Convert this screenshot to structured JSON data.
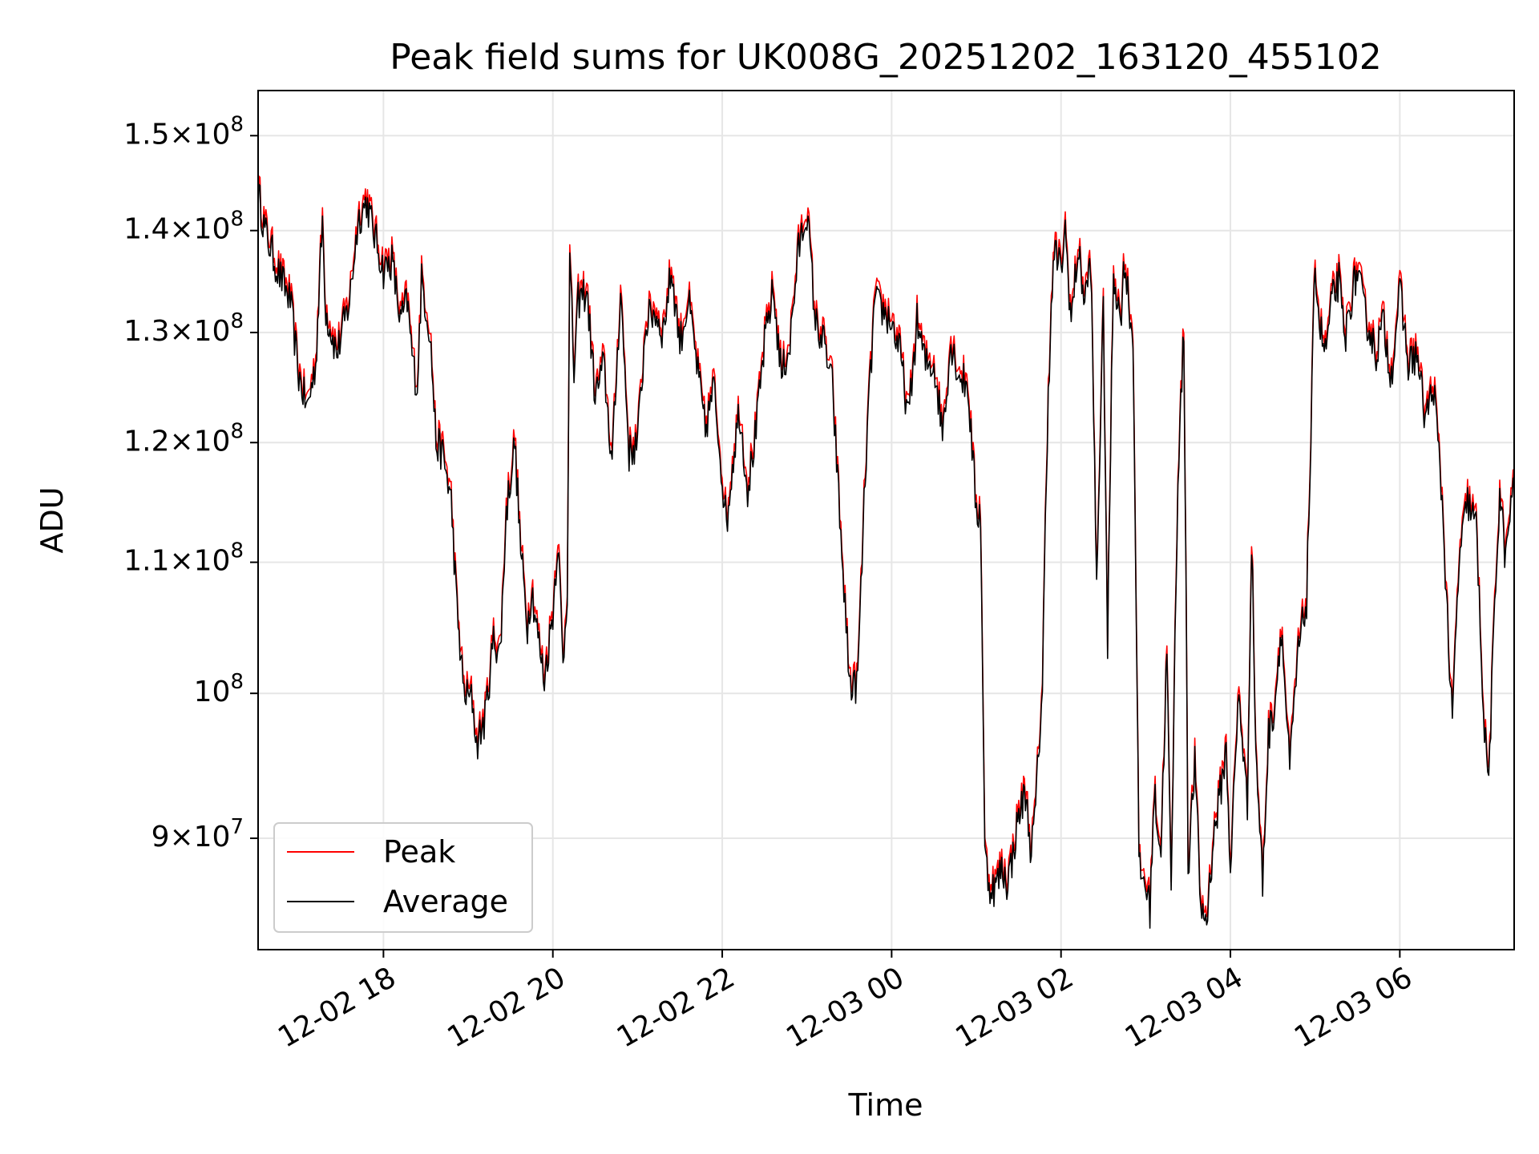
{
  "chart_data": {
    "type": "line",
    "title": "Peak field sums for UK008G_20251202_163120_455102",
    "xlabel": "Time",
    "ylabel": "ADU",
    "yscale": "log",
    "ylim": [
      83000000,
      155000000
    ],
    "xlim_hours": [
      16.52,
      31.35
    ],
    "grid": true,
    "legend_position": "lower left",
    "x_ticks": [
      {
        "hour": 18,
        "label": "12-02 18"
      },
      {
        "hour": 20,
        "label": "12-02 20"
      },
      {
        "hour": 22,
        "label": "12-02 22"
      },
      {
        "hour": 24,
        "label": "12-03 00"
      },
      {
        "hour": 26,
        "label": "12-03 02"
      },
      {
        "hour": 28,
        "label": "12-03 04"
      },
      {
        "hour": 30,
        "label": "12-03 06"
      }
    ],
    "y_ticks": [
      {
        "value": 90000000,
        "mant": "9",
        "exp": "7"
      },
      {
        "value": 100000000,
        "mant": "",
        "exp": "8"
      },
      {
        "value": 110000000,
        "mant": "1.1",
        "exp": "8"
      },
      {
        "value": 120000000,
        "mant": "1.2",
        "exp": "8"
      },
      {
        "value": 130000000,
        "mant": "1.3",
        "exp": "8"
      },
      {
        "value": 140000000,
        "mant": "1.4",
        "exp": "8"
      },
      {
        "value": 150000000,
        "mant": "1.5",
        "exp": "8"
      }
    ],
    "series": [
      {
        "name": "Peak",
        "color": "#ff0000",
        "offset_ratio": 1.006
      },
      {
        "name": "Average",
        "color": "#000000",
        "offset_ratio": 1.0
      }
    ],
    "average_points": [
      [
        16.52,
        144
      ],
      [
        16.6,
        140
      ],
      [
        16.75,
        136
      ],
      [
        16.9,
        133
      ],
      [
        17.0,
        126
      ],
      [
        17.1,
        123
      ],
      [
        17.2,
        127
      ],
      [
        17.28,
        141
      ],
      [
        17.32,
        132
      ],
      [
        17.45,
        128
      ],
      [
        17.6,
        133
      ],
      [
        17.7,
        141
      ],
      [
        17.8,
        143
      ],
      [
        17.88,
        140
      ],
      [
        18.0,
        136
      ],
      [
        18.1,
        137
      ],
      [
        18.2,
        131
      ],
      [
        18.28,
        133
      ],
      [
        18.35,
        127
      ],
      [
        18.4,
        125
      ],
      [
        18.45,
        135
      ],
      [
        18.55,
        130
      ],
      [
        18.62,
        120
      ],
      [
        18.7,
        119
      ],
      [
        18.8,
        115
      ],
      [
        18.87,
        106
      ],
      [
        18.95,
        100
      ],
      [
        19.05,
        99.5
      ],
      [
        19.1,
        96.3
      ],
      [
        19.2,
        98.2
      ],
      [
        19.3,
        104
      ],
      [
        19.38,
        103
      ],
      [
        19.45,
        114
      ],
      [
        19.55,
        120
      ],
      [
        19.62,
        111
      ],
      [
        19.7,
        105
      ],
      [
        19.75,
        108
      ],
      [
        19.85,
        103
      ],
      [
        19.9,
        101
      ],
      [
        20.0,
        106
      ],
      [
        20.06,
        112
      ],
      [
        20.12,
        102
      ],
      [
        20.17,
        108
      ],
      [
        20.2,
        137
      ],
      [
        20.25,
        126
      ],
      [
        20.3,
        133
      ],
      [
        20.4,
        134
      ],
      [
        20.5,
        124
      ],
      [
        20.6,
        127
      ],
      [
        20.7,
        118
      ],
      [
        20.8,
        134
      ],
      [
        20.9,
        119
      ],
      [
        21.0,
        120
      ],
      [
        21.1,
        131
      ],
      [
        21.2,
        132
      ],
      [
        21.3,
        130
      ],
      [
        21.4,
        136
      ],
      [
        21.5,
        129
      ],
      [
        21.6,
        133
      ],
      [
        21.7,
        127
      ],
      [
        21.8,
        121
      ],
      [
        21.9,
        125
      ],
      [
        22.0,
        117
      ],
      [
        22.05,
        113
      ],
      [
        22.12,
        118
      ],
      [
        22.2,
        123
      ],
      [
        22.3,
        116
      ],
      [
        22.4,
        121
      ],
      [
        22.5,
        129
      ],
      [
        22.6,
        134
      ],
      [
        22.7,
        126
      ],
      [
        22.8,
        129
      ],
      [
        22.9,
        138
      ],
      [
        23.0,
        142
      ],
      [
        23.1,
        131
      ],
      [
        23.2,
        129
      ],
      [
        23.3,
        125
      ],
      [
        23.4,
        112
      ],
      [
        23.5,
        101
      ],
      [
        23.55,
        100.3
      ],
      [
        23.6,
        101
      ],
      [
        23.7,
        119
      ],
      [
        23.8,
        133
      ],
      [
        23.9,
        132
      ],
      [
        24.0,
        131
      ],
      [
        24.1,
        128
      ],
      [
        24.2,
        122
      ],
      [
        24.3,
        131
      ],
      [
        24.4,
        127
      ],
      [
        24.5,
        127
      ],
      [
        24.6,
        121
      ],
      [
        24.7,
        129
      ],
      [
        24.8,
        126
      ],
      [
        24.9,
        125
      ],
      [
        25.0,
        114
      ],
      [
        25.05,
        114
      ],
      [
        25.1,
        89
      ],
      [
        25.15,
        87
      ],
      [
        25.22,
        86.8
      ],
      [
        25.3,
        88
      ],
      [
        25.36,
        87.2
      ],
      [
        25.42,
        88.5
      ],
      [
        25.5,
        91.5
      ],
      [
        25.58,
        93
      ],
      [
        25.65,
        89
      ],
      [
        25.7,
        92
      ],
      [
        25.78,
        100.5
      ],
      [
        25.85,
        125
      ],
      [
        25.92,
        138
      ],
      [
        26.0,
        136
      ],
      [
        26.05,
        140
      ],
      [
        26.12,
        131
      ],
      [
        26.2,
        138
      ],
      [
        26.28,
        133
      ],
      [
        26.35,
        137
      ],
      [
        26.42,
        108
      ],
      [
        26.5,
        132
      ],
      [
        26.55,
        103
      ],
      [
        26.62,
        136
      ],
      [
        26.7,
        131
      ],
      [
        26.75,
        137
      ],
      [
        26.85,
        129
      ],
      [
        26.92,
        88
      ],
      [
        27.0,
        87
      ],
      [
        27.05,
        85.5
      ],
      [
        27.1,
        93
      ],
      [
        27.18,
        89
      ],
      [
        27.25,
        103
      ],
      [
        27.3,
        86
      ],
      [
        27.38,
        117
      ],
      [
        27.45,
        130
      ],
      [
        27.5,
        88
      ],
      [
        27.58,
        95
      ],
      [
        27.65,
        85.5
      ],
      [
        27.72,
        84.8
      ],
      [
        27.8,
        90
      ],
      [
        27.88,
        93
      ],
      [
        27.95,
        96
      ],
      [
        28.0,
        88
      ],
      [
        28.1,
        100
      ],
      [
        28.2,
        92
      ],
      [
        28.25,
        112
      ],
      [
        28.3,
        96
      ],
      [
        28.38,
        87
      ],
      [
        28.45,
        97
      ],
      [
        28.52,
        99
      ],
      [
        28.6,
        105
      ],
      [
        28.7,
        94.5
      ],
      [
        28.8,
        103
      ],
      [
        28.9,
        107
      ],
      [
        28.95,
        120
      ],
      [
        29.0,
        137
      ],
      [
        29.05,
        131
      ],
      [
        29.12,
        128
      ],
      [
        29.2,
        133
      ],
      [
        29.28,
        135
      ],
      [
        29.35,
        129
      ],
      [
        29.42,
        133
      ],
      [
        29.5,
        136
      ],
      [
        29.58,
        132
      ],
      [
        29.65,
        130
      ],
      [
        29.72,
        128
      ],
      [
        29.8,
        131
      ],
      [
        29.9,
        126
      ],
      [
        30.0,
        134
      ],
      [
        30.1,
        127
      ],
      [
        30.2,
        128
      ],
      [
        30.3,
        122
      ],
      [
        30.4,
        125
      ],
      [
        30.5,
        115
      ],
      [
        30.6,
        100
      ],
      [
        30.62,
        98
      ],
      [
        30.7,
        110
      ],
      [
        30.8,
        115
      ],
      [
        30.9,
        113
      ],
      [
        31.0,
        97
      ],
      [
        31.05,
        94
      ],
      [
        31.12,
        106
      ],
      [
        31.18,
        116
      ],
      [
        31.25,
        110
      ],
      [
        31.3,
        114
      ],
      [
        31.35,
        116
      ]
    ],
    "legend": {
      "peak_label": "Peak",
      "average_label": "Average"
    }
  }
}
